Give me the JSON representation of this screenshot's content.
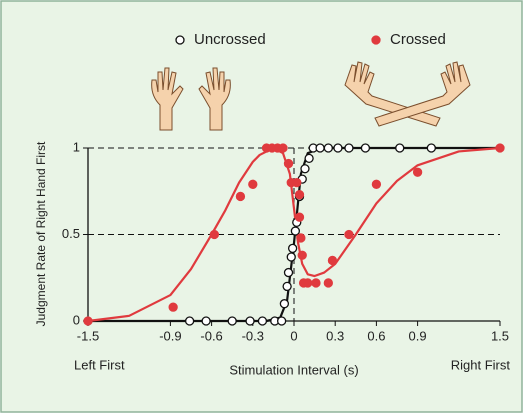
{
  "chart_data": {
    "type": "scatter",
    "legend_labels": [
      "Uncrossed",
      "Crossed"
    ],
    "x_label": "Stimulation Interval (s)",
    "y_label": "Judgment Rate of Right Hand First",
    "x_left_annotation": "Left First",
    "x_right_annotation": "Right First",
    "xlim": [
      -1.5,
      1.5
    ],
    "ylim": [
      0,
      1
    ],
    "xticks": [
      -1.5,
      -0.9,
      -0.6,
      -0.3,
      0,
      0.3,
      0.6,
      0.9,
      1.5
    ],
    "yticks": [
      0,
      0.5,
      1
    ],
    "grid": true,
    "series": [
      {
        "name": "Uncrossed",
        "color": "#111111",
        "marker": "open",
        "x": [
          -0.76,
          -0.64,
          -0.45,
          -0.32,
          -0.23,
          -0.14,
          -0.09,
          -0.07,
          -0.05,
          -0.04,
          -0.02,
          -0.01,
          0.01,
          0.02,
          0.04,
          0.06,
          0.08,
          0.11,
          0.14,
          0.19,
          0.25,
          0.32,
          0.4,
          0.52,
          0.77,
          1.0
        ],
        "values": [
          0,
          0,
          0,
          0,
          0,
          0,
          0,
          0.1,
          0.2,
          0.28,
          0.37,
          0.42,
          0.52,
          0.57,
          0.72,
          0.82,
          0.88,
          0.94,
          1,
          1,
          1,
          1,
          1,
          1,
          1,
          1
        ]
      },
      {
        "name": "Crossed",
        "color": "#e03a3e",
        "marker": "filled",
        "x": [
          -1.5,
          -0.88,
          -0.58,
          -0.39,
          -0.3,
          -0.2,
          -0.16,
          -0.12,
          -0.08,
          -0.04,
          -0.02,
          0.02,
          0.04,
          0.04,
          0.05,
          0.06,
          0.07,
          0.1,
          0.16,
          0.25,
          0.28,
          0.4,
          0.6,
          0.9,
          1.5
        ],
        "values": [
          0,
          0.08,
          0.5,
          0.72,
          0.79,
          1,
          1,
          1,
          1,
          0.91,
          0.8,
          0.8,
          0.73,
          0.6,
          0.48,
          0.38,
          0.22,
          0.22,
          0.22,
          0.22,
          0.35,
          0.5,
          0.79,
          0.86,
          1
        ]
      }
    ],
    "fits": [
      {
        "color": "#111111",
        "x": [
          -1.5,
          -0.2,
          -0.1,
          -0.05,
          0,
          0.05,
          0.1,
          0.2,
          1.5
        ],
        "values": [
          0,
          0,
          0.02,
          0.12,
          0.45,
          0.85,
          0.97,
          1,
          1
        ]
      },
      {
        "color": "#e03a3e",
        "x": [
          -1.5,
          -1.2,
          -0.9,
          -0.75,
          -0.6,
          -0.5,
          -0.4,
          -0.3,
          -0.25,
          -0.15,
          -0.08,
          -0.03,
          0,
          0.03,
          0.06,
          0.1,
          0.15,
          0.22,
          0.3,
          0.45,
          0.6,
          0.75,
          0.9,
          1.2,
          1.5
        ],
        "values": [
          0,
          0.03,
          0.15,
          0.3,
          0.5,
          0.64,
          0.8,
          0.92,
          0.96,
          1,
          0.97,
          0.85,
          0.65,
          0.45,
          0.33,
          0.27,
          0.26,
          0.28,
          0.33,
          0.5,
          0.68,
          0.81,
          0.9,
          0.98,
          1
        ]
      }
    ]
  }
}
